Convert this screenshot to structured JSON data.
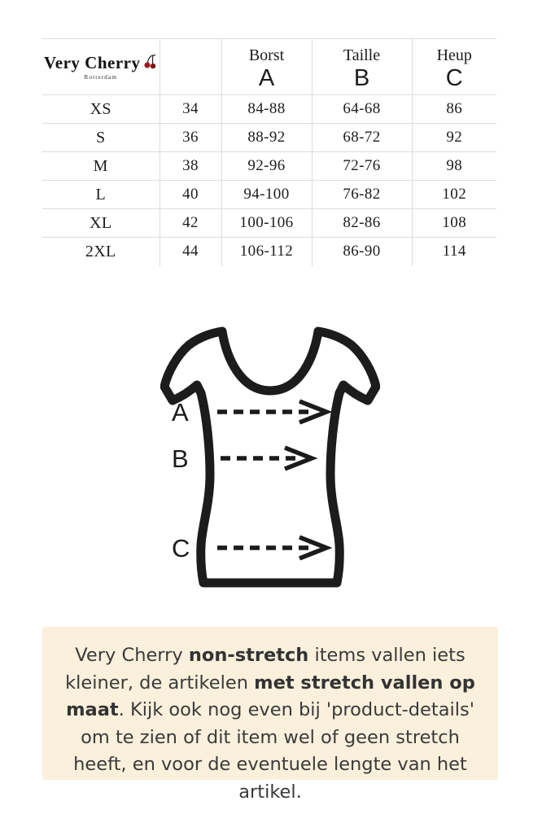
{
  "brand": {
    "name": "Very Cherry",
    "city": "Rotterdam"
  },
  "size_table": {
    "columns": [
      {
        "label": "",
        "letter": ""
      },
      {
        "label": "",
        "letter": ""
      },
      {
        "label": "Borst",
        "letter": "A"
      },
      {
        "label": "Taille",
        "letter": "B"
      },
      {
        "label": "Heup",
        "letter": "C"
      }
    ],
    "rows": [
      {
        "size": "XS",
        "eu": "34",
        "borst": "84-88",
        "taille": "64-68",
        "heup": "86"
      },
      {
        "size": "S",
        "eu": "36",
        "borst": "88-92",
        "taille": "68-72",
        "heup": "92"
      },
      {
        "size": "M",
        "eu": "38",
        "borst": "92-96",
        "taille": "72-76",
        "heup": "98"
      },
      {
        "size": "L",
        "eu": "40",
        "borst": "94-100",
        "taille": "76-82",
        "heup": "102"
      },
      {
        "size": "XL",
        "eu": "42",
        "borst": "100-106",
        "taille": "82-86",
        "heup": "108"
      },
      {
        "size": "2XL",
        "eu": "44",
        "borst": "106-112",
        "taille": "86-90",
        "heup": "114"
      }
    ]
  },
  "diagram": {
    "labels": [
      "A",
      "B",
      "C"
    ]
  },
  "note": {
    "background": "#faf0dc",
    "segments": [
      {
        "text": "Very Cherry ",
        "bold": false
      },
      {
        "text": "non-stretch",
        "bold": true
      },
      {
        "text": " items vallen iets kleiner, de artikelen ",
        "bold": false
      },
      {
        "text": "met stretch vallen op maat",
        "bold": true
      },
      {
        "text": ". Kijk ook nog even bij 'product-details' om te zien of dit item wel of geen stretch heeft, en voor de eventuele lengte van het artikel.",
        "bold": false
      }
    ]
  },
  "colors": {
    "grid": "#dcdcdc",
    "ink": "#1c1c1c",
    "cherry_red": "#9b1b1b",
    "note_text": "#3a3a3a"
  }
}
